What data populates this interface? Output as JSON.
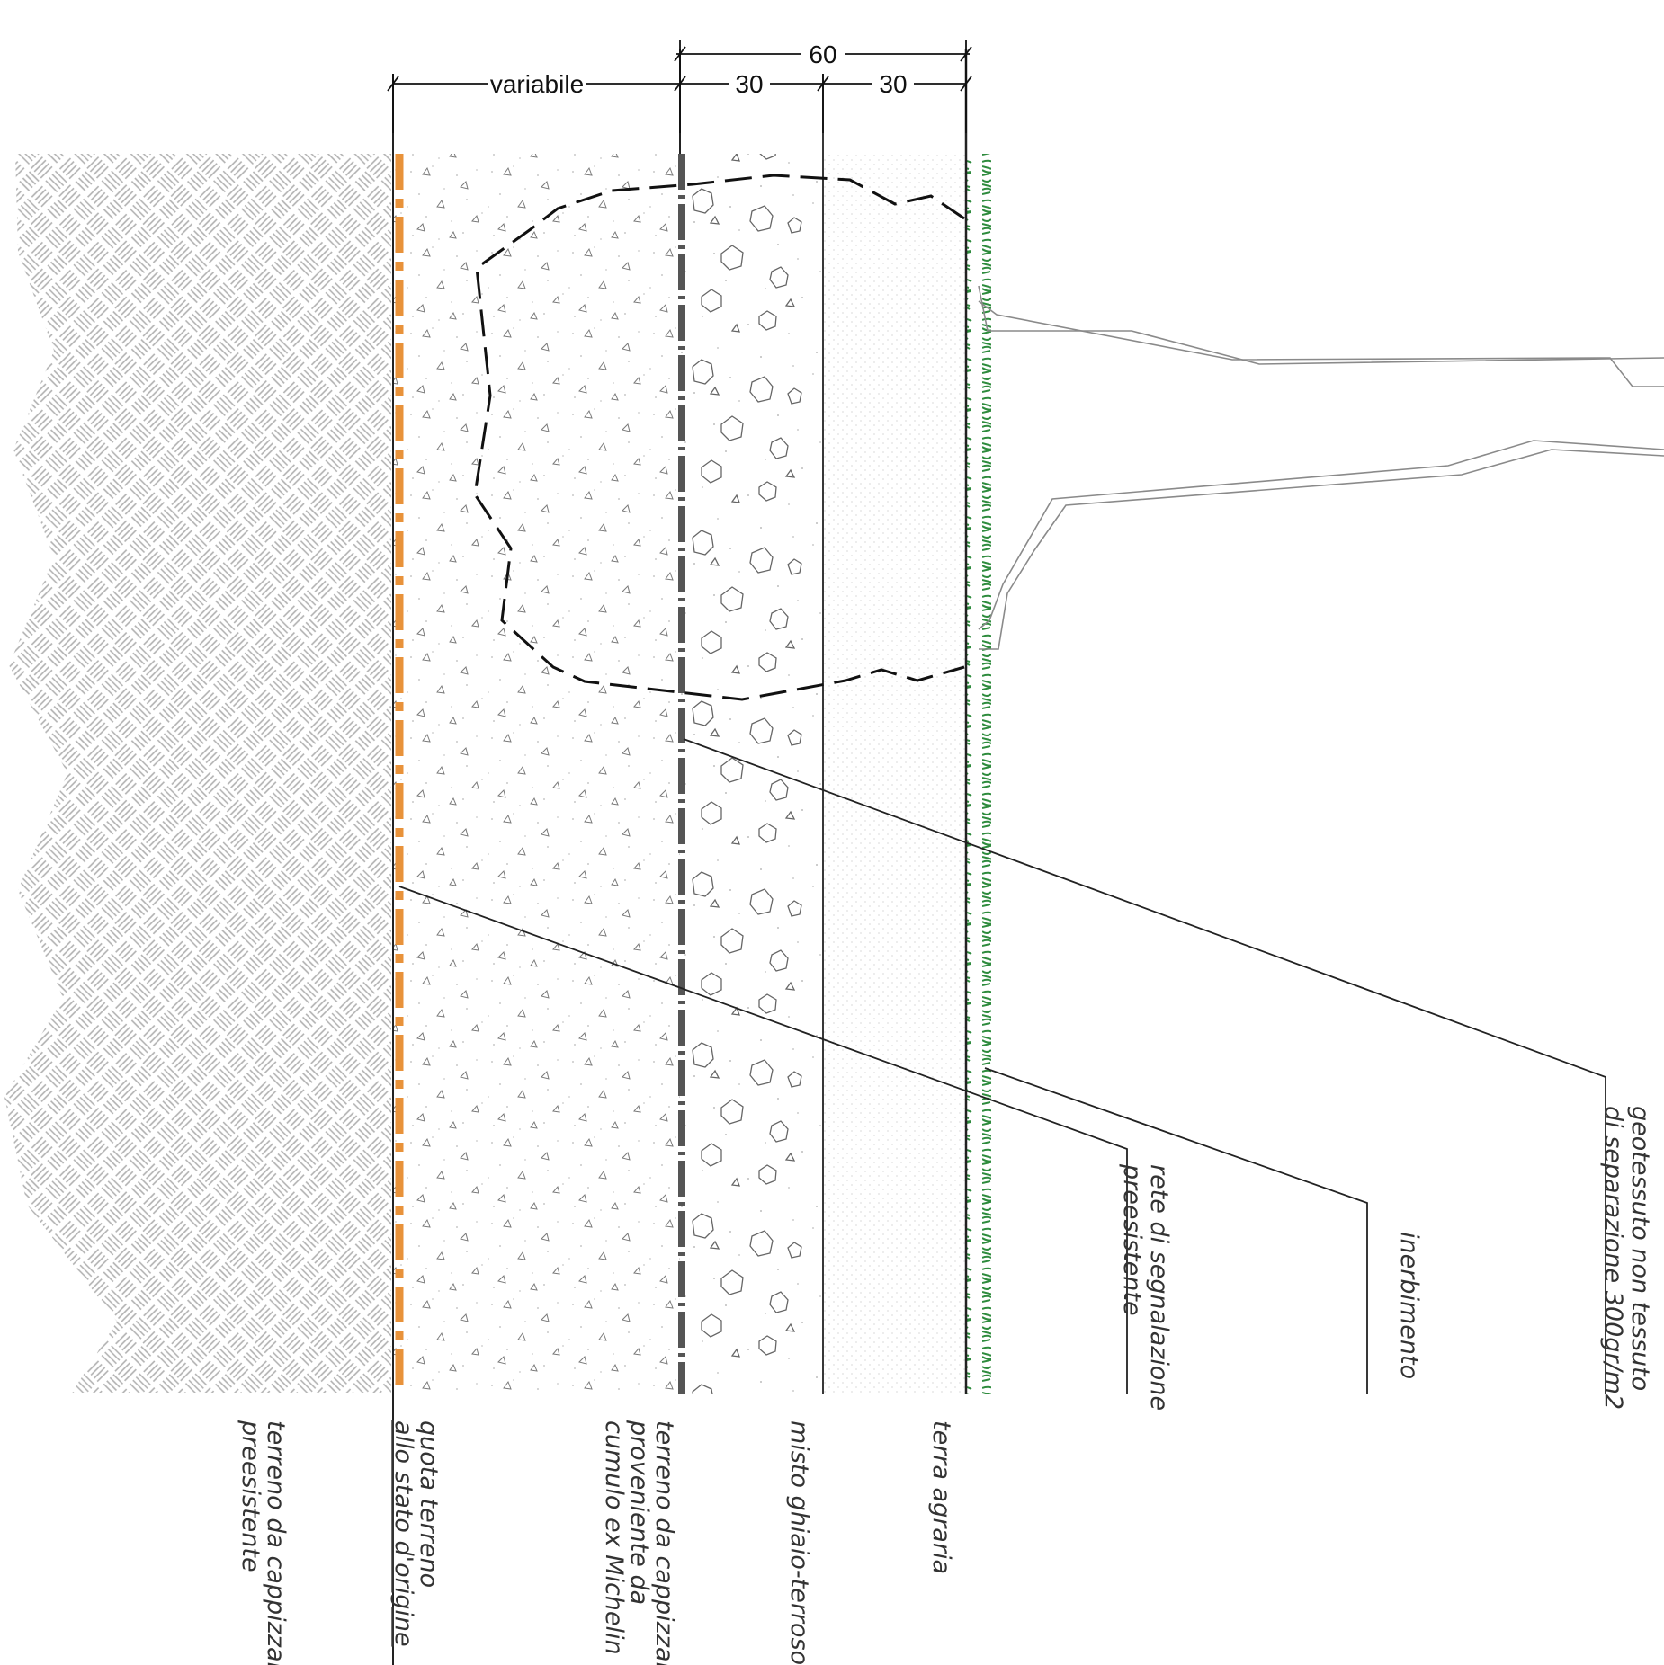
{
  "dimensions": {
    "total": "60",
    "variable": "variabile",
    "layer_1": "30",
    "layer_2": "30"
  },
  "layers": {
    "existing_ground": [
      "terreno da cappizzare",
      "preesistente"
    ],
    "original_level": [
      "quota terreno",
      "allo stato d'origine"
    ],
    "michelin_fill": [
      "terreno da cappizzare",
      "proveniente da",
      "cumulo ex Michelin"
    ],
    "gravel": [
      "misto ghiaio-terroso"
    ],
    "topsoil": [
      "terra agraria"
    ]
  },
  "callouts": {
    "geotextile": [
      "geotessuto non tessuto",
      "di separazione 300gr/m2"
    ],
    "grass": [
      "inerbimento"
    ],
    "warning_net": [
      "rete di segnalazione",
      "preesistente"
    ]
  },
  "colors": {
    "warning_net": "#e8923a",
    "grass": "#2e8b3d",
    "geotextile": "#555555",
    "line": "#222222",
    "hatch": "#a8a8a8"
  }
}
